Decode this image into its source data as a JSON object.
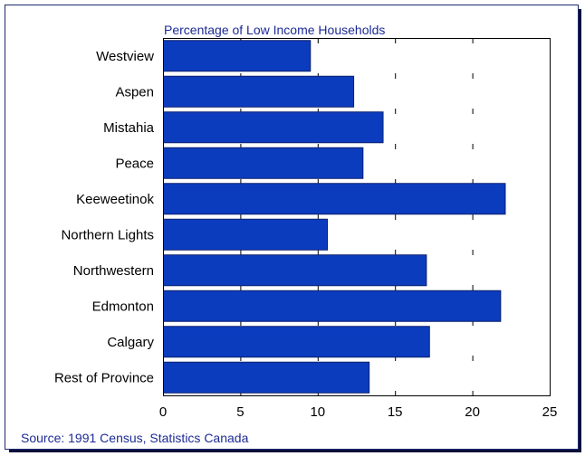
{
  "chart_data": {
    "type": "bar",
    "orientation": "horizontal",
    "title": "Percentage of Low Income Households",
    "categories": [
      "Westview",
      "Aspen",
      "Mistahia",
      "Peace",
      "Keeweetinok",
      "Northern Lights",
      "Northwestern",
      "Edmonton",
      "Calgary",
      "Rest of Province"
    ],
    "values": [
      9.5,
      12.3,
      14.2,
      12.9,
      22.1,
      10.6,
      17.0,
      21.8,
      17.2,
      13.3
    ],
    "xlim": [
      0,
      25
    ],
    "xticks": [
      "0",
      "5",
      "10",
      "15",
      "20",
      "25"
    ],
    "xlabel": "",
    "ylabel": "",
    "grid": "vertical dashed",
    "bar_color": "#0c3cbe",
    "source": "Source: 1991 Census, Statistics Canada"
  }
}
